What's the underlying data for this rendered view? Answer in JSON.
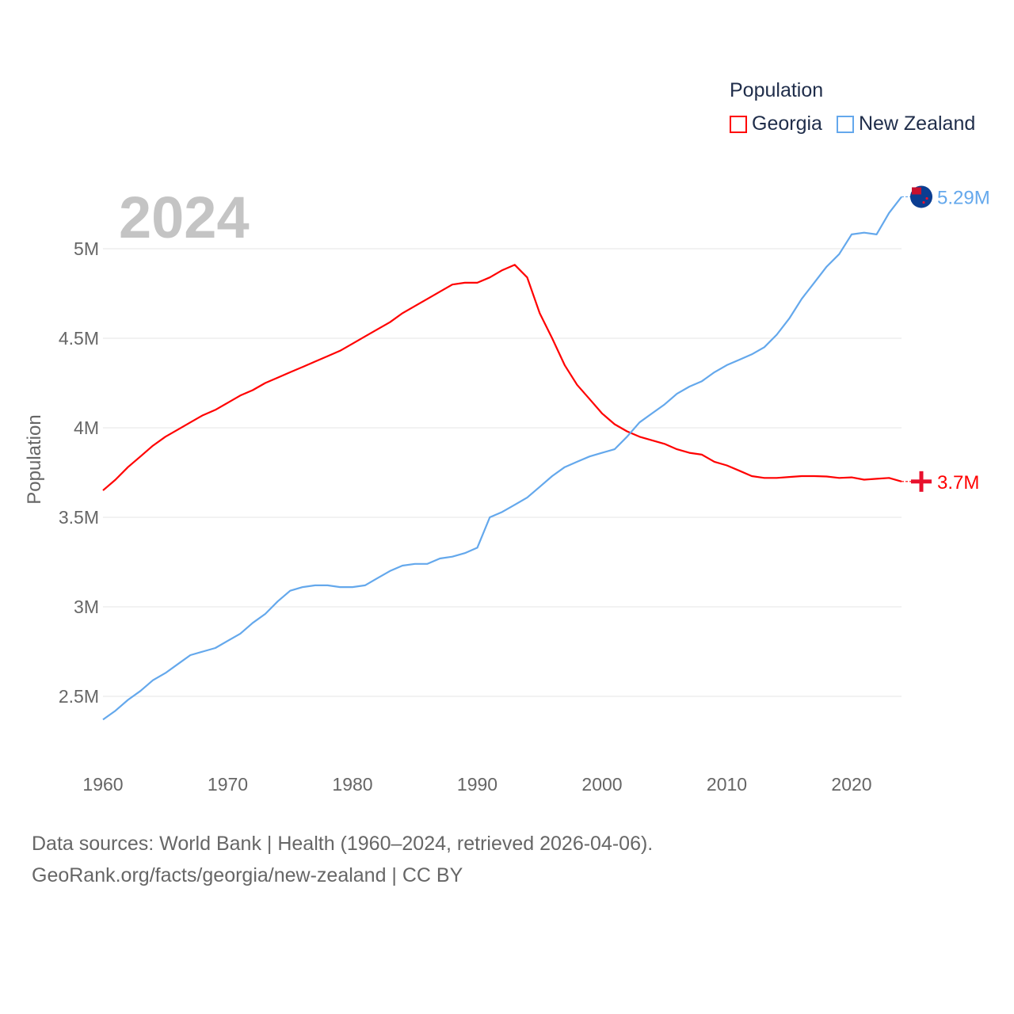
{
  "chart_data": {
    "type": "line",
    "title": "Population",
    "year_label": "2024",
    "xlabel": "",
    "ylabel": "Population",
    "xlim": [
      1960,
      2024
    ],
    "ylim": [
      2.2,
      5.3
    ],
    "y_unit": "millions",
    "grid": true,
    "legend_position": "top-right",
    "x_ticks": [
      "1960",
      "1970",
      "1980",
      "1990",
      "2000",
      "2010",
      "2020"
    ],
    "y_ticks": [
      {
        "v": 2.5,
        "label": "2.5M"
      },
      {
        "v": 3,
        "label": "3M"
      },
      {
        "v": 3.5,
        "label": "3.5M"
      },
      {
        "v": 4,
        "label": "4M"
      },
      {
        "v": 4.5,
        "label": "4.5M"
      },
      {
        "v": 5,
        "label": "5M"
      }
    ],
    "x_start": 1960,
    "series": [
      {
        "name": "Georgia",
        "color": "#ff0000",
        "end_label": "3.7M",
        "flag": "georgia-flag",
        "values": [
          3.65,
          3.71,
          3.78,
          3.84,
          3.9,
          3.95,
          3.99,
          4.03,
          4.07,
          4.1,
          4.14,
          4.18,
          4.21,
          4.25,
          4.28,
          4.31,
          4.34,
          4.37,
          4.4,
          4.43,
          4.47,
          4.51,
          4.55,
          4.59,
          4.64,
          4.68,
          4.72,
          4.76,
          4.8,
          4.81,
          4.81,
          4.84,
          4.88,
          4.91,
          4.84,
          4.64,
          4.5,
          4.35,
          4.24,
          4.16,
          4.08,
          4.02,
          3.98,
          3.95,
          3.93,
          3.91,
          3.88,
          3.86,
          3.85,
          3.81,
          3.79,
          3.76,
          3.73,
          3.72,
          3.72,
          3.725,
          3.73,
          3.73,
          3.728,
          3.72,
          3.723,
          3.71,
          3.715,
          3.72,
          3.7
        ]
      },
      {
        "name": "New Zealand",
        "color": "#64a8ec",
        "end_label": "5.29M",
        "flag": "new-zealand-flag",
        "values": [
          2.37,
          2.42,
          2.48,
          2.53,
          2.59,
          2.63,
          2.68,
          2.73,
          2.75,
          2.77,
          2.81,
          2.85,
          2.91,
          2.96,
          3.03,
          3.09,
          3.11,
          3.12,
          3.12,
          3.11,
          3.11,
          3.12,
          3.16,
          3.2,
          3.23,
          3.24,
          3.24,
          3.27,
          3.28,
          3.3,
          3.33,
          3.5,
          3.53,
          3.57,
          3.61,
          3.67,
          3.73,
          3.78,
          3.81,
          3.84,
          3.86,
          3.88,
          3.95,
          4.03,
          4.08,
          4.13,
          4.19,
          4.23,
          4.26,
          4.31,
          4.35,
          4.38,
          4.41,
          4.45,
          4.52,
          4.61,
          4.72,
          4.81,
          4.9,
          4.97,
          5.08,
          5.09,
          5.08,
          5.2,
          5.29
        ]
      }
    ]
  },
  "footer": {
    "line1": "Data sources: World Bank | Health (1960–2024, retrieved 2026-04-06).",
    "line2": "GeoRank.org/facts/georgia/new-zealand | CC BY"
  }
}
